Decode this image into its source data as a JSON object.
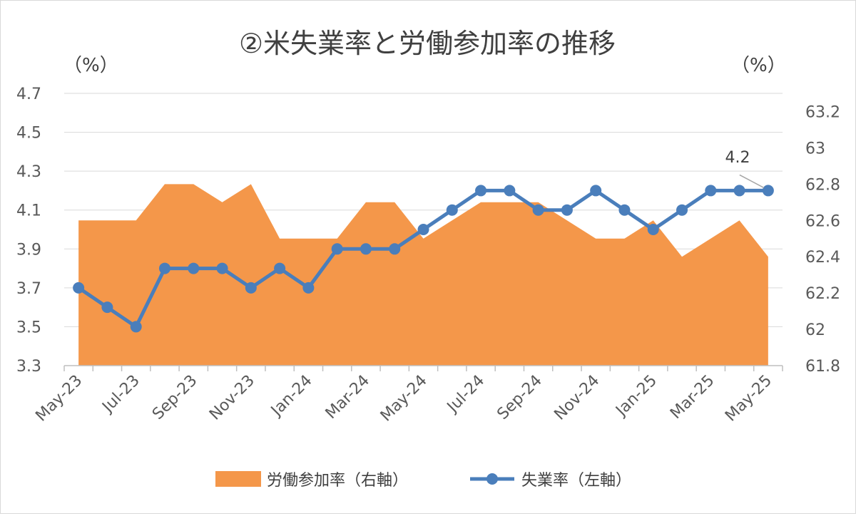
{
  "chart_data": {
    "type": "line",
    "title": "②米失業率と労働参加率の推移",
    "left_unit": "（%）",
    "right_unit": "（%）",
    "x": [
      "May-23",
      "Jun-23",
      "Jul-23",
      "Aug-23",
      "Sep-23",
      "Oct-23",
      "Nov-23",
      "Dec-23",
      "Jan-24",
      "Feb-24",
      "Mar-24",
      "Apr-24",
      "May-24",
      "Jun-24",
      "Jul-24",
      "Aug-24",
      "Sep-24",
      "Oct-24",
      "Nov-24",
      "Dec-24",
      "Jan-25",
      "Feb-25",
      "Mar-25",
      "Apr-25",
      "May-25"
    ],
    "x_tick_labels": [
      "May-23",
      "Jul-23",
      "Sep-23",
      "Nov-23",
      "Jan-24",
      "Mar-24",
      "May-24",
      "Jul-24",
      "Sep-24",
      "Nov-24",
      "Jan-25",
      "Mar-25",
      "May-25"
    ],
    "y_left": {
      "range": [
        3.3,
        4.7
      ],
      "ticks": [
        "3.3",
        "3.5",
        "3.7",
        "3.9",
        "4.1",
        "4.3",
        "4.5",
        "4.7"
      ]
    },
    "y_right": {
      "range": [
        61.8,
        63.3
      ],
      "ticks": [
        "61.8",
        "62",
        "62.2",
        "62.4",
        "62.6",
        "62.8",
        "63",
        "63.2"
      ]
    },
    "grid": true,
    "legend_position": "bottom",
    "series": [
      {
        "name": "労働参加率（右軸）",
        "type": "area",
        "axis": "right",
        "color": "#F4974A",
        "values": [
          62.6,
          62.6,
          62.6,
          62.8,
          62.8,
          62.7,
          62.8,
          62.5,
          62.5,
          62.5,
          62.7,
          62.7,
          62.5,
          62.6,
          62.7,
          62.7,
          62.7,
          62.6,
          62.5,
          62.5,
          62.6,
          62.4,
          62.5,
          62.6,
          62.4
        ]
      },
      {
        "name": "失業率（左軸）",
        "type": "line",
        "axis": "left",
        "color": "#4A7EBB",
        "values": [
          3.7,
          3.6,
          3.5,
          3.8,
          3.8,
          3.8,
          3.7,
          3.8,
          3.7,
          3.9,
          3.9,
          3.9,
          4.0,
          4.1,
          4.2,
          4.2,
          4.1,
          4.1,
          4.2,
          4.1,
          4.0,
          4.1,
          4.2,
          4.2,
          4.2
        ]
      }
    ],
    "annotation": {
      "text": "4.2",
      "series": "失業率（左軸）",
      "index": 24
    }
  }
}
